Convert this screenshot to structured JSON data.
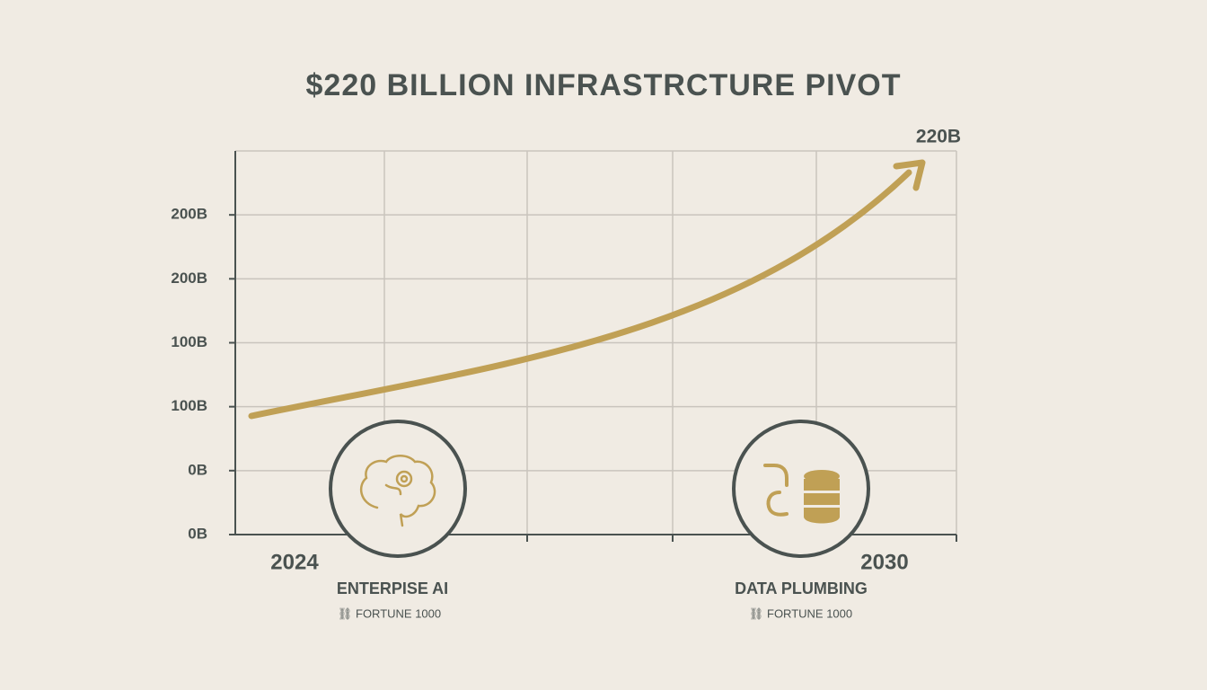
{
  "chart_data": {
    "type": "line",
    "title": "$220 BILLION INFRASTRCTURE PIVOT",
    "y_axis_labels": [
      "0B",
      "0B",
      "100B",
      "100B",
      "200B",
      "200B"
    ],
    "x_labels": [
      "2024",
      "2030"
    ],
    "end_label": "220B",
    "color": "#c0a055",
    "grid": true,
    "panels": [
      {
        "label": "ENTERPISE AI",
        "sublabel": "FORTUNE 1000"
      },
      {
        "label": "DATA PLUMBING",
        "sublabel": "FORTUNE 1000"
      }
    ]
  }
}
